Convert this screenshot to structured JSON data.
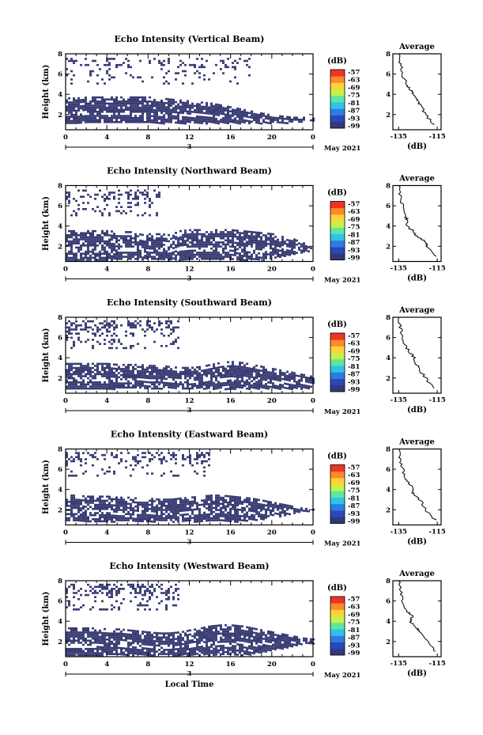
{
  "figure": {
    "x_axis_label": "Local Time",
    "date_label": "May 2021",
    "day_label": "3",
    "x_ticks": [
      "0",
      "4",
      "8",
      "12",
      "16",
      "20",
      "0"
    ],
    "y_label": "Height (km)",
    "y_ticks": [
      "2",
      "4",
      "6",
      "8"
    ],
    "colorbar_unit": "(dB)",
    "colorbar_ticks": [
      "-57",
      "-63",
      "-69",
      "-75",
      "-81",
      "-87",
      "-93",
      "-99"
    ],
    "colorbar_colors": [
      "#303a7a",
      "#2b48b8",
      "#2f7be0",
      "#2ec4e8",
      "#5ee6a0",
      "#c8f04a",
      "#ffd23a",
      "#ff8a2a",
      "#ee3424"
    ],
    "echo_color": "#3a3d73",
    "avg_title": "Average",
    "avg_x_ticks": [
      "-135",
      "-115"
    ],
    "avg_x_unit": "(dB)"
  },
  "chart_data": [
    {
      "type": "heatmap",
      "title": "Echo Intensity (Vertical Beam)",
      "xlabel": "",
      "ylabel": "Height (km)",
      "xlim": [
        0,
        24
      ],
      "ylim": [
        0.5,
        8
      ],
      "zlim": [
        -99,
        -57
      ],
      "echo_regions": [
        {
          "name": "lower",
          "top_km": [
            3.7,
            3.7,
            3.8,
            3.8,
            3.8,
            3.8,
            3.8,
            3.8,
            3.8,
            3.7,
            3.6,
            3.5,
            3.4,
            3.3,
            3.2,
            3.0,
            2.8,
            2.6,
            2.4,
            2.2,
            2.0,
            1.9,
            1.8,
            1.8,
            1.7
          ],
          "bottom_km": [
            1.2,
            1.2,
            1.2,
            1.2,
            1.2,
            1.2,
            1.2,
            1.2,
            1.2,
            1.2,
            1.2,
            1.2,
            1.2,
            1.2,
            1.2,
            1.2,
            1.2,
            1.2,
            1.2,
            1.2,
            1.2,
            1.2,
            1.3,
            1.4,
            1.5
          ],
          "fill": 0.9
        },
        {
          "name": "upper",
          "top_km": [
            7.6,
            7.6,
            7.6,
            7.6,
            7.6,
            7.6,
            7.6,
            7.6,
            7.6,
            7.6,
            7.6,
            7.6,
            7.6,
            7.6,
            7.6,
            7.6,
            7.6,
            7.6,
            7.6,
            7.6,
            7.6,
            7.6,
            7.6,
            7.6,
            7.6
          ],
          "bottom_km": [
            5.0,
            5.0,
            5.0,
            5.0,
            5.0,
            5.0,
            5.0,
            5.0,
            5.0,
            5.0,
            5.0,
            5.0,
            5.0,
            5.0,
            5.0,
            5.0,
            5.0,
            5.0,
            5.0,
            5.0,
            5.0,
            5.0,
            5.0,
            5.0,
            5.0
          ],
          "fill": 0.12,
          "max_hour": 18
        }
      ],
      "average_profile": {
        "height_km": [
          1.0,
          2.0,
          3.0,
          3.5,
          4.0,
          4.5,
          5.0,
          6.0,
          7.0,
          8.0
        ],
        "db": [
          -117,
          -121,
          -124,
          -126,
          -127,
          -129,
          -131,
          -133,
          -134,
          -135
        ],
        "xlim": [
          -138,
          -113
        ]
      }
    },
    {
      "type": "heatmap",
      "title": "Echo Intensity (Northward Beam)",
      "xlabel": "",
      "ylabel": "Height (km)",
      "xlim": [
        0,
        24
      ],
      "ylim": [
        0.5,
        8
      ],
      "zlim": [
        -99,
        -57
      ],
      "echo_regions": [
        {
          "name": "lower",
          "top_km": [
            3.6,
            3.6,
            3.6,
            3.6,
            3.6,
            3.5,
            3.5,
            3.5,
            3.3,
            3.3,
            3.2,
            3.6,
            3.7,
            3.7,
            3.7,
            3.7,
            3.7,
            3.6,
            3.5,
            3.4,
            3.3,
            3.0,
            2.8,
            2.4,
            2.0
          ],
          "bottom_km": [
            0.7,
            0.7,
            0.7,
            0.7,
            0.7,
            0.7,
            0.7,
            0.7,
            0.7,
            0.7,
            0.7,
            0.7,
            0.7,
            0.7,
            0.7,
            0.7,
            0.7,
            0.7,
            0.7,
            0.7,
            0.9,
            1.1,
            1.3,
            1.5,
            1.7
          ],
          "fill": 0.82
        },
        {
          "name": "upper",
          "top_km": [
            7.6,
            7.6,
            7.6,
            7.6,
            7.6,
            7.6,
            7.6,
            7.6,
            7.6,
            7.6,
            7.6,
            7.6,
            7.6,
            7.6,
            7.6,
            7.6,
            7.6,
            7.6,
            7.6,
            7.6,
            7.6,
            7.6,
            7.6,
            7.6,
            7.6
          ],
          "bottom_km": [
            5.0,
            5.0,
            5.0,
            5.0,
            5.0,
            5.0,
            5.0,
            5.0,
            5.0,
            5.0,
            5.0,
            5.0,
            5.0,
            5.0,
            5.0,
            5.0,
            5.0,
            5.0,
            5.0,
            5.0,
            5.0,
            5.0,
            5.0,
            5.0,
            5.0
          ],
          "fill": 0.22,
          "max_hour": 9
        }
      ],
      "average_profile": {
        "height_km": [
          1.0,
          2.0,
          2.5,
          3.0,
          3.5,
          4.0,
          4.5,
          5.0,
          6.0,
          7.0,
          8.0
        ],
        "db": [
          -116,
          -120,
          -121,
          -126,
          -127,
          -131,
          -130,
          -132,
          -133,
          -134,
          -135
        ],
        "xlim": [
          -138,
          -113
        ]
      }
    },
    {
      "type": "heatmap",
      "title": "Echo Intensity (Southward Beam)",
      "xlabel": "",
      "ylabel": "Height (km)",
      "xlim": [
        0,
        24
      ],
      "ylim": [
        0.5,
        8
      ],
      "zlim": [
        -99,
        -57
      ],
      "echo_regions": [
        {
          "name": "lower",
          "top_km": [
            3.5,
            3.5,
            3.5,
            3.5,
            3.5,
            3.4,
            3.4,
            3.4,
            3.3,
            3.3,
            3.2,
            3.1,
            3.1,
            3.2,
            3.4,
            3.6,
            3.7,
            3.6,
            3.4,
            3.2,
            3.0,
            2.8,
            2.6,
            2.4,
            2.2
          ],
          "bottom_km": [
            1.0,
            1.0,
            1.0,
            1.0,
            1.0,
            1.0,
            1.0,
            1.0,
            1.0,
            1.0,
            1.0,
            1.0,
            1.0,
            1.0,
            1.0,
            1.0,
            1.0,
            1.0,
            1.0,
            1.0,
            1.0,
            1.0,
            1.0,
            1.0,
            1.0
          ],
          "fill": 0.85
        },
        {
          "name": "upper",
          "top_km": [
            7.7,
            7.7,
            7.7,
            7.7,
            7.7,
            7.7,
            7.7,
            7.7,
            7.7,
            7.7,
            7.7,
            7.7,
            7.7,
            7.7,
            7.7,
            7.7,
            7.7,
            7.7,
            7.7,
            7.7,
            7.7,
            7.7,
            7.7,
            7.7,
            7.7
          ],
          "bottom_km": [
            5.0,
            5.0,
            5.0,
            5.0,
            5.0,
            5.0,
            5.0,
            5.0,
            5.0,
            5.0,
            5.0,
            5.0,
            5.0,
            5.0,
            5.0,
            5.0,
            5.0,
            5.0,
            5.0,
            5.0,
            5.0,
            5.0,
            5.0,
            5.0,
            5.0
          ],
          "fill": 0.28,
          "max_hour": 11
        }
      ],
      "average_profile": {
        "height_km": [
          1.0,
          2.0,
          3.0,
          3.5,
          4.0,
          4.5,
          5.0,
          6.0,
          7.0,
          8.0
        ],
        "db": [
          -117,
          -121,
          -125,
          -126,
          -127,
          -129,
          -131,
          -133,
          -134,
          -135
        ],
        "xlim": [
          -138,
          -113
        ]
      }
    },
    {
      "type": "heatmap",
      "title": "Echo Intensity (Eastward Beam)",
      "xlabel": "",
      "ylabel": "Height (km)",
      "xlim": [
        0,
        24
      ],
      "ylim": [
        0.5,
        8
      ],
      "zlim": [
        -99,
        -57
      ],
      "echo_regions": [
        {
          "name": "lower",
          "top_km": [
            3.5,
            3.5,
            3.4,
            3.4,
            3.4,
            3.3,
            3.3,
            3.2,
            3.2,
            3.1,
            3.1,
            3.2,
            3.3,
            3.4,
            3.5,
            3.5,
            3.4,
            3.3,
            3.2,
            3.0,
            2.8,
            2.6,
            2.4,
            2.2,
            2.1
          ],
          "bottom_km": [
            0.9,
            0.9,
            0.9,
            0.9,
            0.9,
            0.9,
            0.9,
            0.9,
            0.9,
            0.9,
            0.9,
            0.9,
            0.9,
            0.9,
            0.9,
            0.9,
            0.9,
            0.9,
            1.0,
            1.1,
            1.3,
            1.5,
            1.7,
            1.9,
            2.0
          ],
          "fill": 0.82
        },
        {
          "name": "upper",
          "top_km": [
            7.7,
            7.7,
            7.7,
            7.7,
            7.7,
            7.7,
            7.7,
            7.7,
            7.7,
            7.7,
            7.7,
            7.7,
            7.7,
            7.7,
            7.7,
            7.7,
            7.7,
            7.7,
            7.7,
            7.7,
            7.7,
            7.7,
            7.7,
            7.7,
            7.7
          ],
          "bottom_km": [
            5.4,
            5.4,
            5.4,
            5.4,
            5.4,
            5.4,
            5.4,
            5.4,
            5.4,
            5.4,
            5.4,
            5.4,
            5.4,
            5.4,
            5.4,
            5.4,
            5.4,
            5.4,
            5.4,
            5.4,
            5.4,
            5.4,
            5.4,
            5.4,
            5.4
          ],
          "fill": 0.25,
          "max_hour": 14
        }
      ],
      "average_profile": {
        "height_km": [
          1.0,
          2.0,
          3.0,
          3.5,
          4.0,
          4.5,
          5.0,
          6.0,
          7.0,
          8.0
        ],
        "db": [
          -116,
          -121,
          -124,
          -127,
          -128,
          -129,
          -131,
          -133,
          -134,
          -135
        ],
        "xlim": [
          -138,
          -113
        ]
      }
    },
    {
      "type": "heatmap",
      "title": "Echo Intensity (Westward Beam)",
      "xlabel": "Local Time",
      "ylabel": "Height (km)",
      "xlim": [
        0,
        24
      ],
      "ylim": [
        0.5,
        8
      ],
      "zlim": [
        -99,
        -57
      ],
      "echo_regions": [
        {
          "name": "lower",
          "top_km": [
            3.4,
            3.4,
            3.4,
            3.4,
            3.3,
            3.3,
            3.2,
            3.1,
            3.0,
            2.9,
            2.9,
            3.0,
            3.2,
            3.4,
            3.6,
            3.7,
            3.7,
            3.6,
            3.4,
            3.2,
            3.0,
            2.8,
            2.6,
            2.4,
            2.3
          ],
          "bottom_km": [
            0.7,
            0.7,
            0.7,
            0.7,
            0.7,
            0.7,
            0.7,
            0.7,
            0.7,
            0.7,
            0.7,
            0.7,
            0.7,
            0.7,
            0.7,
            0.7,
            0.7,
            0.7,
            0.8,
            1.0,
            1.2,
            1.4,
            1.6,
            1.8,
            1.9
          ],
          "fill": 0.88
        },
        {
          "name": "upper",
          "top_km": [
            7.7,
            7.7,
            7.7,
            7.7,
            7.7,
            7.7,
            7.7,
            7.7,
            7.7,
            7.7,
            7.7,
            7.7,
            7.7,
            7.7,
            7.7,
            7.7,
            7.7,
            7.7,
            7.7,
            7.7,
            7.7,
            7.7,
            7.7,
            7.7,
            7.7
          ],
          "bottom_km": [
            5.2,
            5.2,
            5.2,
            5.2,
            5.2,
            5.2,
            5.2,
            5.2,
            5.2,
            5.2,
            5.2,
            5.2,
            5.2,
            5.2,
            5.2,
            5.2,
            5.2,
            5.2,
            5.2,
            5.2,
            5.2,
            5.2,
            5.2,
            5.2,
            5.2
          ],
          "fill": 0.3,
          "max_hour": 11
        }
      ],
      "average_profile": {
        "height_km": [
          1.0,
          2.0,
          3.0,
          3.5,
          4.0,
          4.5,
          5.0,
          6.0,
          7.0,
          8.0
        ],
        "db": [
          -116,
          -120,
          -124,
          -127,
          -129,
          -128,
          -131,
          -133,
          -134,
          -135
        ],
        "xlim": [
          -138,
          -113
        ]
      }
    }
  ]
}
